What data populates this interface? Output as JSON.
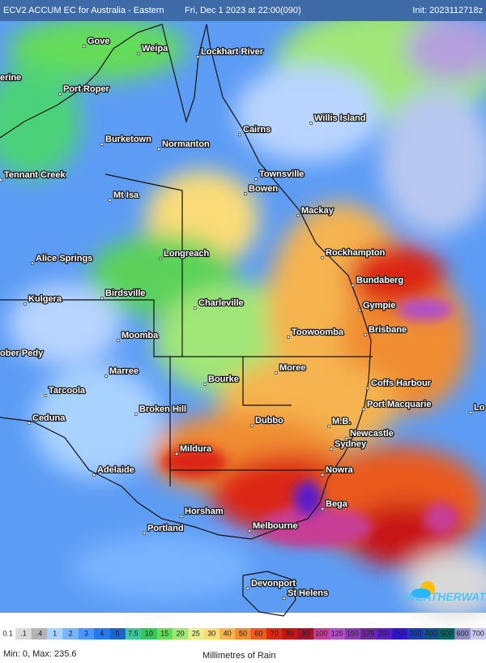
{
  "header": {
    "title": "ECV2 ACCUM EC for Australia - Eastern",
    "date": "Fri, Dec 1 2023 at 22:00(090)",
    "init": "Init: 2023112718z"
  },
  "cities": [
    "Gove",
    "Weipa",
    "Lockhart River",
    "erine",
    "Port Roper",
    "Willis Island",
    "Cairns",
    "Burketown",
    "Normanton",
    "Tennant Creek",
    "Townsville",
    "Bowen",
    "Mt Isa",
    "Mackay",
    "Rockhampton",
    "Longreach",
    "Alice Springs",
    "Bundaberg",
    "Birdsville",
    "Kulgera",
    "Charleville",
    "Gympie",
    "Brisbane",
    "Toowoomba",
    "Moomba",
    "ober Pedy",
    "Marree",
    "Moree",
    "Bourke",
    "Coffs Harbour",
    "Tarcoola",
    "Broken Hill",
    "Port Macquarie",
    "Lo",
    "Ceduna",
    "Dubbo",
    "M.B.",
    "Newcastle",
    "Sydney",
    "Mildura",
    "Adelaide",
    "Nowra",
    "Bega",
    "Horsham",
    "Melbourne",
    "Portland",
    "Devonport",
    "St Helens"
  ],
  "logo": "WEATHERWATCH",
  "legend": {
    "labels": [
      "0.1",
      ".1",
      ".4",
      "1",
      "2",
      "3",
      "4",
      "5",
      "7.5",
      "10",
      "15",
      "20",
      "25",
      "30",
      "40",
      "50",
      "60",
      "70",
      "80",
      "90",
      "100",
      "125",
      "150",
      "175",
      "200",
      "250",
      "300",
      "400",
      "500",
      "600",
      "700"
    ],
    "colors": [
      "#ffffff",
      "#d9d9d9",
      "#b4b4b4",
      "#a9d2ff",
      "#78b4ff",
      "#4b96ff",
      "#2a78f0",
      "#1e64c8",
      "#3cc8a0",
      "#34c85a",
      "#64dc5a",
      "#a0e678",
      "#e6f08c",
      "#fadc78",
      "#f5b450",
      "#f08c32",
      "#eb5a1e",
      "#dc2814",
      "#c81414",
      "#a0142d",
      "#c83c96",
      "#b450c8",
      "#8c3cb4",
      "#6e28a0",
      "#5a1ec8",
      "#3214dc",
      "#1e3cb4",
      "#14508c",
      "#0a6464",
      "#8c8cc8",
      "#c8c8f0"
    ],
    "min_max": "Min: 0, Max: 235.6",
    "unit": "Millimetres of Rain"
  }
}
